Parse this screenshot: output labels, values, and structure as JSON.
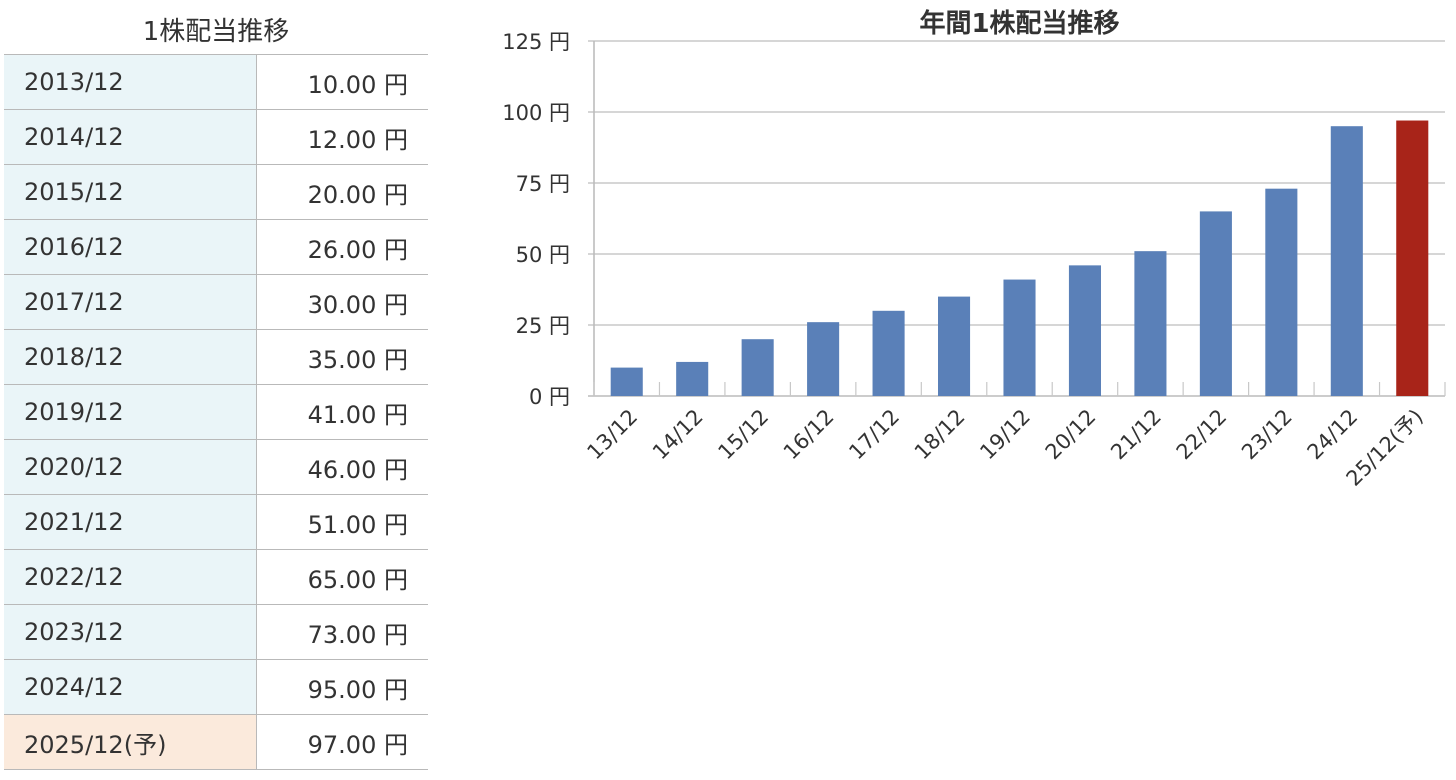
{
  "table": {
    "title": "1株配当推移",
    "unit": "円",
    "rows": [
      {
        "period": "2013/12",
        "value": "10.00",
        "forecast": false
      },
      {
        "period": "2014/12",
        "value": "12.00",
        "forecast": false
      },
      {
        "period": "2015/12",
        "value": "20.00",
        "forecast": false
      },
      {
        "period": "2016/12",
        "value": "26.00",
        "forecast": false
      },
      {
        "period": "2017/12",
        "value": "30.00",
        "forecast": false
      },
      {
        "period": "2018/12",
        "value": "35.00",
        "forecast": false
      },
      {
        "period": "2019/12",
        "value": "41.00",
        "forecast": false
      },
      {
        "period": "2020/12",
        "value": "46.00",
        "forecast": false
      },
      {
        "period": "2021/12",
        "value": "51.00",
        "forecast": false
      },
      {
        "period": "2022/12",
        "value": "65.00",
        "forecast": false
      },
      {
        "period": "2023/12",
        "value": "73.00",
        "forecast": false
      },
      {
        "period": "2024/12",
        "value": "95.00",
        "forecast": false
      },
      {
        "period": "2025/12(予)",
        "value": "97.00",
        "forecast": true
      }
    ]
  },
  "chart_data": {
    "type": "bar",
    "title": "年間1株配当推移",
    "categories": [
      "13/12",
      "14/12",
      "15/12",
      "16/12",
      "17/12",
      "18/12",
      "19/12",
      "20/12",
      "21/12",
      "22/12",
      "23/12",
      "24/12",
      "25/12(予)"
    ],
    "values": [
      10,
      12,
      20,
      26,
      30,
      35,
      41,
      46,
      51,
      65,
      73,
      95,
      97
    ],
    "forecast": [
      false,
      false,
      false,
      false,
      false,
      false,
      false,
      false,
      false,
      false,
      false,
      false,
      true
    ],
    "ylim": [
      0,
      125
    ],
    "yticks": [
      0,
      25,
      50,
      75,
      100,
      125
    ],
    "ytick_suffix": " 円",
    "grid": true,
    "colors": {
      "actual": "#5a80b8",
      "forecast": "#a82419",
      "grid": "#c8c8c8",
      "axis": "#bcbcbc"
    }
  }
}
